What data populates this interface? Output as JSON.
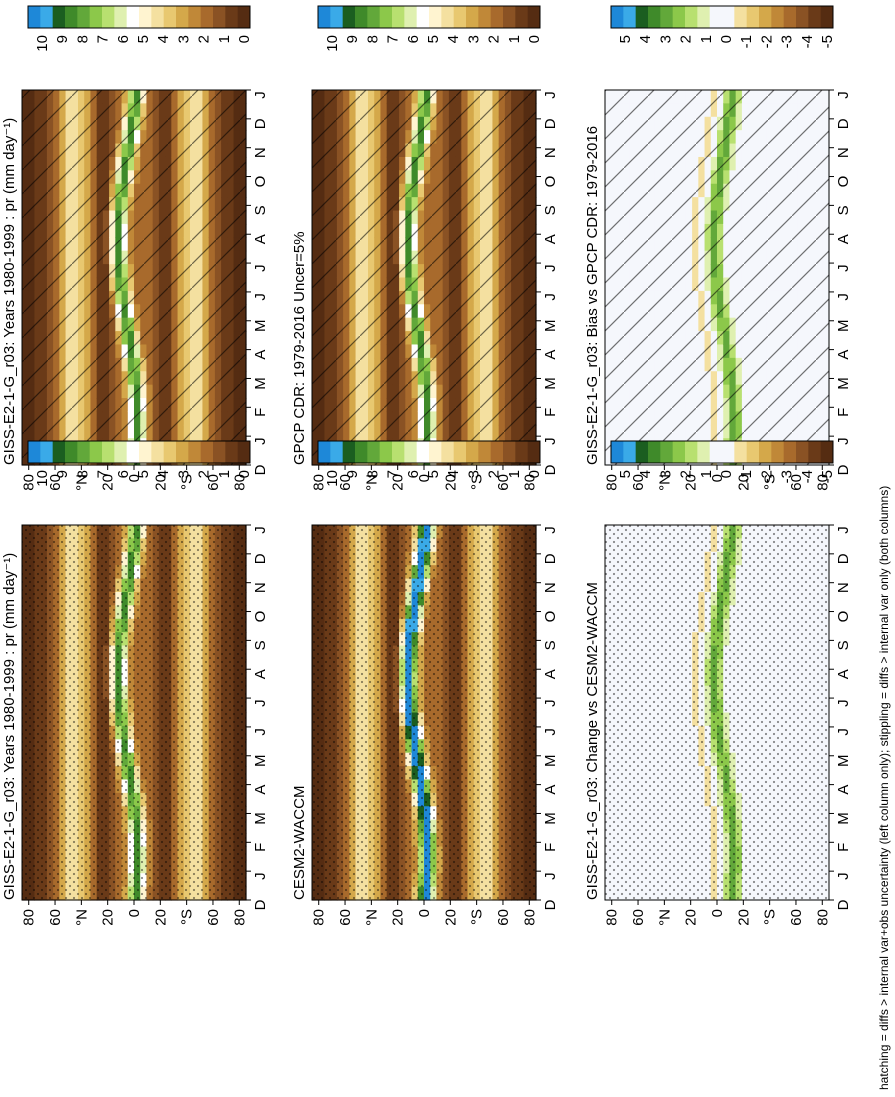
{
  "chart_data": [
    {
      "type": "heatmap",
      "title": "GISS-E2-1-G_r03: Years 1980-1999 : pr (mm day⁻¹)",
      "field": "mean",
      "xlabel": "",
      "ylabel": "",
      "x_ticks": [
        "D",
        "J",
        "F",
        "M",
        "A",
        "M",
        "J",
        "J",
        "A",
        "S",
        "O",
        "N",
        "D",
        "J"
      ],
      "y_ticks": [
        "80",
        "60",
        "°N",
        "20",
        "0",
        "20",
        "°S",
        "60",
        "80"
      ],
      "colorbar_ticks": [
        "10",
        "9",
        "8",
        "7",
        "6",
        "5",
        "4",
        "3",
        "2",
        "1",
        "0"
      ],
      "overlay": "hatching"
    },
    {
      "type": "heatmap",
      "title": "GISS-E2-1-G_r03: Years 1980-1999 : pr (mm day⁻¹)",
      "field": "mean",
      "xlabel": "",
      "ylabel": "",
      "x_ticks": [
        "D",
        "J",
        "F",
        "M",
        "A",
        "M",
        "J",
        "J",
        "A",
        "S",
        "O",
        "N",
        "D",
        "J"
      ],
      "y_ticks": [
        "80",
        "60",
        "°N",
        "20",
        "0",
        "20",
        "°S",
        "60",
        "80"
      ],
      "colorbar_ticks": [
        "10",
        "9",
        "8",
        "7",
        "6",
        "5",
        "4",
        "3",
        "2",
        "1",
        "0"
      ],
      "overlay": "stipple"
    },
    {
      "type": "heatmap",
      "title": "GPCP CDR: 1979-2016 Uncer=5%",
      "field": "mean",
      "xlabel": "",
      "ylabel": "",
      "x_ticks": [
        "D",
        "J",
        "F",
        "M",
        "A",
        "M",
        "J",
        "J",
        "A",
        "S",
        "O",
        "N",
        "D",
        "J"
      ],
      "y_ticks": [
        "80",
        "60",
        "°N",
        "20",
        "0",
        "20",
        "°S",
        "60",
        "80"
      ],
      "colorbar_ticks": [
        "10",
        "9",
        "8",
        "7",
        "6",
        "5",
        "4",
        "3",
        "2",
        "1",
        "0"
      ],
      "overlay": "hatching"
    },
    {
      "type": "heatmap",
      "title": "CESM2-WACCM",
      "field": "mean",
      "xlabel": "",
      "ylabel": "",
      "x_ticks": [
        "D",
        "J",
        "F",
        "M",
        "A",
        "M",
        "J",
        "J",
        "A",
        "S",
        "O",
        "N",
        "D",
        "J"
      ],
      "y_ticks": [
        "80",
        "60",
        "°N",
        "20",
        "0",
        "20",
        "°S",
        "60",
        "80"
      ],
      "colorbar_ticks": [
        "10",
        "9",
        "8",
        "7",
        "6",
        "5",
        "4",
        "3",
        "2",
        "1",
        "0"
      ],
      "overlay": "stipple"
    },
    {
      "type": "heatmap",
      "title": "GISS-E2-1-G_r03: Bias vs GPCP CDR: 1979-2016",
      "field": "diff",
      "xlabel": "",
      "ylabel": "",
      "x_ticks": [
        "D",
        "J",
        "F",
        "M",
        "A",
        "M",
        "J",
        "J",
        "A",
        "S",
        "O",
        "N",
        "D",
        "J"
      ],
      "y_ticks": [
        "80",
        "60",
        "°N",
        "20",
        "0",
        "20",
        "°S",
        "60",
        "80"
      ],
      "colorbar_ticks": [
        "5",
        "4",
        "3",
        "2",
        "1",
        "0",
        "-1",
        "-2",
        "-3",
        "-4",
        "-5"
      ],
      "overlay": "hatching"
    },
    {
      "type": "heatmap",
      "title": "GISS-E2-1-G_r03: Change vs CESM2-WACCM",
      "field": "diff",
      "xlabel": "",
      "ylabel": "",
      "x_ticks": [
        "D",
        "J",
        "F",
        "M",
        "A",
        "M",
        "J",
        "J",
        "A",
        "S",
        "O",
        "N",
        "D",
        "J"
      ],
      "y_ticks": [
        "80",
        "60",
        "°N",
        "20",
        "0",
        "20",
        "°S",
        "60",
        "80"
      ],
      "colorbar_ticks": [
        "5",
        "4",
        "3",
        "2",
        "1",
        "0",
        "-1",
        "-2",
        "-3",
        "-4",
        "-5"
      ],
      "overlay": "stipple"
    }
  ],
  "footnote": "hatching = diffs > internal var+obs uncertainty (left column only); stippling = diffs > internal var only (both columns)",
  "colors": {
    "mean_scale": [
      "#1e88d8",
      "#3aaae8",
      "#1b5e20",
      "#3f8a2a",
      "#62a83a",
      "#8cc84a",
      "#b8e070",
      "#dff0b0",
      "#ffffff",
      "#fff4d0",
      "#f4e0a0",
      "#e8c870",
      "#d4a84a",
      "#c08838",
      "#a86a2c",
      "#8a5224",
      "#6a3a18",
      "#552c12"
    ],
    "diff_scale": [
      "#1e88d8",
      "#3aaae8",
      "#1b5e20",
      "#3f8a2a",
      "#62a83a",
      "#8cc84a",
      "#b8e070",
      "#dff0b0",
      "#f5f7fc",
      "#f5f7fc",
      "#f4e0a0",
      "#e8c870",
      "#d4a84a",
      "#c08838",
      "#a86a2c",
      "#8a5224",
      "#6a3a18",
      "#552c12"
    ]
  }
}
